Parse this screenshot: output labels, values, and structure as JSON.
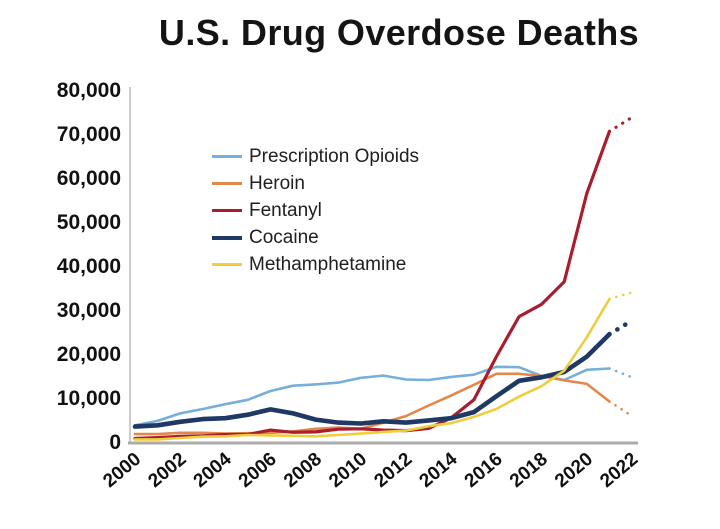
{
  "title": "U.S. Drug Overdose Deaths",
  "chart_data": {
    "type": "line",
    "title": "U.S. Drug Overdose Deaths",
    "xlabel": "",
    "ylabel": "",
    "xlim": [
      2000,
      2022
    ],
    "ylim": [
      0,
      80000
    ],
    "grid": false,
    "legend_position": "inside-upper-left",
    "x": [
      2000,
      2001,
      2002,
      2003,
      2004,
      2005,
      2006,
      2007,
      2008,
      2009,
      2010,
      2011,
      2012,
      2013,
      2014,
      2015,
      2016,
      2017,
      2018,
      2019,
      2020,
      2021,
      2022
    ],
    "x_tick_values": [
      2000,
      2002,
      2004,
      2006,
      2008,
      2010,
      2012,
      2014,
      2016,
      2018,
      2020,
      2022
    ],
    "x_tick_labels": [
      "2000",
      "2002",
      "2004",
      "2006",
      "2008",
      "2010",
      "2012",
      "2014",
      "2016",
      "2018",
      "2020",
      "2022"
    ],
    "y_tick_values": [
      0,
      10000,
      20000,
      30000,
      40000,
      50000,
      60000,
      70000,
      80000
    ],
    "y_tick_labels": [
      "0",
      "10,000",
      "20,000",
      "30,000",
      "40,000",
      "50,000",
      "60,000",
      "70,000",
      "80,000"
    ],
    "dotted_from_x": 2021,
    "series": [
      {
        "name": "Prescription Opioids",
        "color": "#76AFD9",
        "line_width": 2.6,
        "values": [
          3800,
          4800,
          6500,
          7500,
          8600,
          9600,
          11600,
          12800,
          13100,
          13500,
          14600,
          15100,
          14200,
          14100,
          14800,
          15300,
          17100,
          17000,
          15000,
          14100,
          16400,
          16700,
          14700
        ]
      },
      {
        "name": "Heroin",
        "color": "#E2884B",
        "line_width": 2.6,
        "values": [
          1800,
          1800,
          2100,
          2100,
          1900,
          2000,
          2100,
          2400,
          3000,
          3300,
          3000,
          4400,
          5900,
          8300,
          10600,
          13000,
          15500,
          15500,
          15000,
          14000,
          13200,
          9200,
          5900
        ]
      },
      {
        "name": "Fentanyl",
        "color": "#A91E2D",
        "line_width": 3.2,
        "values": [
          800,
          1000,
          1300,
          1400,
          1700,
          1700,
          2700,
          2200,
          2300,
          2900,
          3000,
          2700,
          2600,
          3100,
          5500,
          9600,
          19400,
          28500,
          31300,
          36400,
          56500,
          70600,
          73800
        ]
      },
      {
        "name": "Cocaine",
        "color": "#1F3864",
        "line_width": 4.6,
        "values": [
          3500,
          3800,
          4600,
          5200,
          5400,
          6200,
          7400,
          6500,
          5100,
          4400,
          4200,
          4700,
          4400,
          4900,
          5400,
          6800,
          10400,
          13900,
          14700,
          15900,
          19400,
          24500,
          27600
        ]
      },
      {
        "name": "Methamphetamine",
        "color": "#EECE3D",
        "line_width": 2.6,
        "values": [
          600,
          600,
          900,
          1200,
          1300,
          1600,
          1500,
          1400,
          1300,
          1600,
          1900,
          2300,
          2600,
          3600,
          4300,
          5700,
          7500,
          10300,
          12700,
          16200,
          23800,
          32500,
          34000
        ]
      }
    ]
  }
}
